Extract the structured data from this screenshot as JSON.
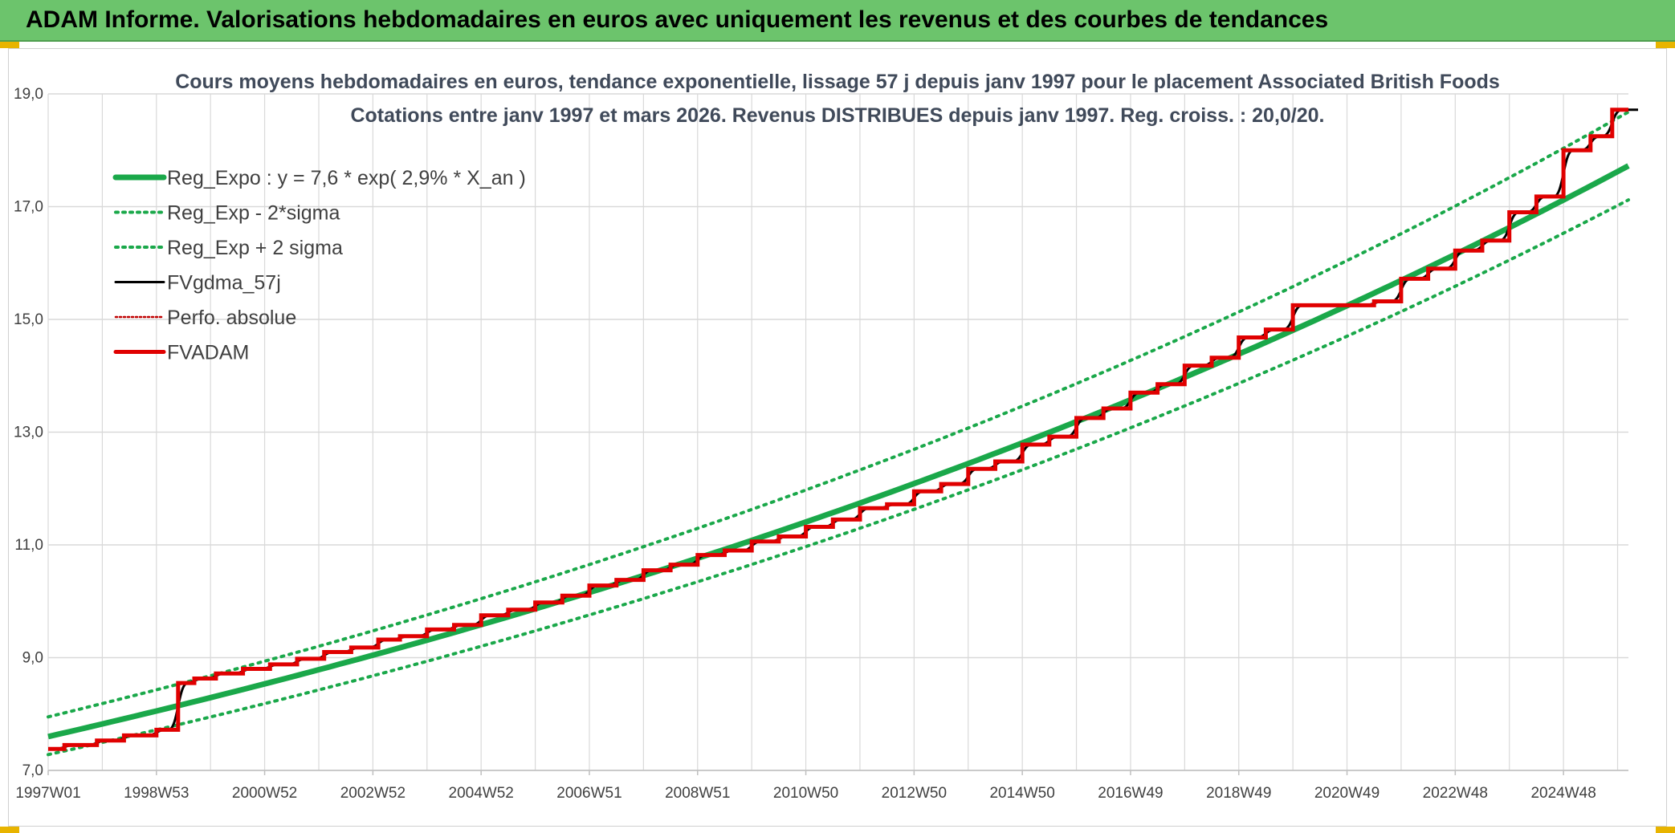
{
  "header": {
    "title": "ADAM Informe. Valorisations hebdomadaires en euros avec uniquement les revenus et des courbes de tendances"
  },
  "colors": {
    "banner": "#6cc46c",
    "reg_expo": "#1aa84a",
    "fvgdma": "#000000",
    "perfo": "#c00000",
    "fvadam": "#e00000",
    "grid": "#d9d9d9"
  },
  "chart_data": {
    "type": "line",
    "title_line1": "Cours moyens hebdomadaires en euros, tendance exponentielle, lissage 57 j depuis janv 1997 pour le placement Associated British Foods",
    "title_line2": "Cotations entre janv 1997 et mars 2026. Revenus DISTRIBUES depuis janv 1997. Reg. croiss. : 20,0/20.",
    "xlabel": "",
    "ylabel": "",
    "ylim": [
      7.0,
      19.0
    ],
    "xlim": [
      1997.0,
      2026.2
    ],
    "y_ticks": [
      7.0,
      9.0,
      11.0,
      13.0,
      15.0,
      17.0,
      19.0
    ],
    "y_tick_labels": [
      "7,0",
      "9,0",
      "11,0",
      "13,0",
      "15,0",
      "17,0",
      "19,0"
    ],
    "x_tick_labels": [
      "1997W01",
      "1998W53",
      "2000W52",
      "2002W52",
      "2004W52",
      "2006W51",
      "2008W51",
      "2010W50",
      "2012W50",
      "2014W50",
      "2016W49",
      "2018W49",
      "2020W49",
      "2022W48",
      "2024W48"
    ],
    "x_ticks": [
      1997.0,
      1999.0,
      2001.0,
      2003.0,
      2005.0,
      2007.0,
      2009.0,
      2011.0,
      2013.0,
      2015.0,
      2017.0,
      2019.0,
      2021.0,
      2023.0,
      2025.0
    ],
    "grid": true,
    "legend_position": "top-left",
    "legend": [
      {
        "key": "reg_expo",
        "label": "Reg_Expo : y = 7,6 * exp( 2,9% *  X_an )"
      },
      {
        "key": "reg_minus",
        "label": "Reg_Exp - 2*sigma"
      },
      {
        "key": "reg_plus",
        "label": "Reg_Exp + 2 sigma"
      },
      {
        "key": "fvgdma",
        "label": "FVgdma_57j"
      },
      {
        "key": "perfo",
        "label": "Perfo. absolue"
      },
      {
        "key": "fvadam",
        "label": "FVADAM"
      }
    ],
    "regression": {
      "a": 7.6,
      "rate": 0.029
    },
    "reg_minus_points": [
      [
        1997.0,
        7.28
      ],
      [
        2026.2,
        17.12
      ]
    ],
    "reg_plus_points": [
      [
        1997.0,
        7.95
      ],
      [
        2026.2,
        18.68
      ]
    ],
    "fvadam_steps": [
      [
        1997.0,
        7.38
      ],
      [
        1997.3,
        7.45
      ],
      [
        1997.9,
        7.53
      ],
      [
        1998.4,
        7.62
      ],
      [
        1999.0,
        7.72
      ],
      [
        1999.4,
        8.55
      ],
      [
        1999.7,
        8.63
      ],
      [
        2000.1,
        8.72
      ],
      [
        2000.6,
        8.8
      ],
      [
        2001.1,
        8.88
      ],
      [
        2001.6,
        8.98
      ],
      [
        2002.1,
        9.1
      ],
      [
        2002.6,
        9.18
      ],
      [
        2003.1,
        9.32
      ],
      [
        2003.5,
        9.38
      ],
      [
        2004.0,
        9.5
      ],
      [
        2004.5,
        9.58
      ],
      [
        2005.0,
        9.75
      ],
      [
        2005.5,
        9.85
      ],
      [
        2006.0,
        9.98
      ],
      [
        2006.5,
        10.1
      ],
      [
        2007.0,
        10.28
      ],
      [
        2007.5,
        10.38
      ],
      [
        2008.0,
        10.55
      ],
      [
        2008.5,
        10.65
      ],
      [
        2009.0,
        10.82
      ],
      [
        2009.5,
        10.9
      ],
      [
        2010.0,
        11.06
      ],
      [
        2010.5,
        11.15
      ],
      [
        2011.0,
        11.32
      ],
      [
        2011.5,
        11.45
      ],
      [
        2012.0,
        11.65
      ],
      [
        2012.5,
        11.72
      ],
      [
        2013.0,
        11.95
      ],
      [
        2013.5,
        12.08
      ],
      [
        2014.0,
        12.35
      ],
      [
        2014.5,
        12.48
      ],
      [
        2015.0,
        12.78
      ],
      [
        2015.5,
        12.92
      ],
      [
        2016.0,
        13.25
      ],
      [
        2016.5,
        13.42
      ],
      [
        2017.0,
        13.7
      ],
      [
        2017.5,
        13.85
      ],
      [
        2018.0,
        14.18
      ],
      [
        2018.5,
        14.32
      ],
      [
        2019.0,
        14.68
      ],
      [
        2019.5,
        14.82
      ],
      [
        2020.0,
        15.25
      ],
      [
        2021.0,
        15.25
      ],
      [
        2021.5,
        15.32
      ],
      [
        2022.0,
        15.72
      ],
      [
        2022.5,
        15.9
      ],
      [
        2023.0,
        16.22
      ],
      [
        2023.5,
        16.4
      ],
      [
        2024.0,
        16.9
      ],
      [
        2024.5,
        17.18
      ],
      [
        2025.0,
        18.0
      ],
      [
        2025.5,
        18.25
      ],
      [
        2025.9,
        18.72
      ],
      [
        2026.2,
        18.72
      ]
    ]
  }
}
